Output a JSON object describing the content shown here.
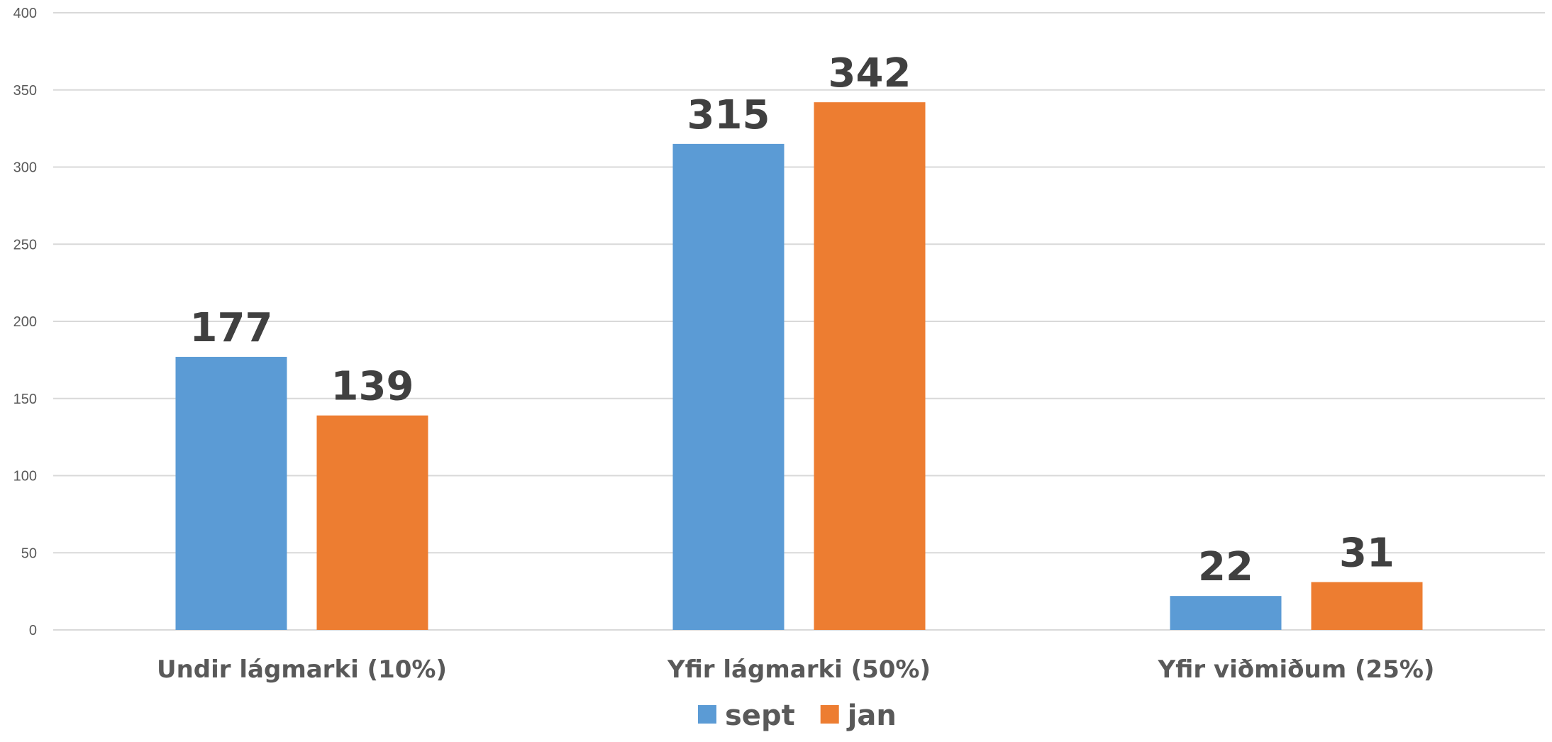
{
  "chart_data": {
    "type": "bar",
    "categories": [
      "Undir lágmarki (10%)",
      "Yfir lágmarki (50%)",
      "Yfir viðmiðum (25%)"
    ],
    "series": [
      {
        "name": "sept",
        "values": [
          177,
          315,
          22
        ],
        "color": "#5b9bd5"
      },
      {
        "name": "jan",
        "values": [
          139,
          342,
          31
        ],
        "color": "#ed7d31"
      }
    ],
    "ylim": [
      0,
      400
    ],
    "yticks": [
      0,
      50,
      100,
      150,
      200,
      250,
      300,
      350,
      400
    ],
    "grid": true,
    "legend_position": "bottom",
    "title": "",
    "xlabel": "",
    "ylabel": ""
  }
}
